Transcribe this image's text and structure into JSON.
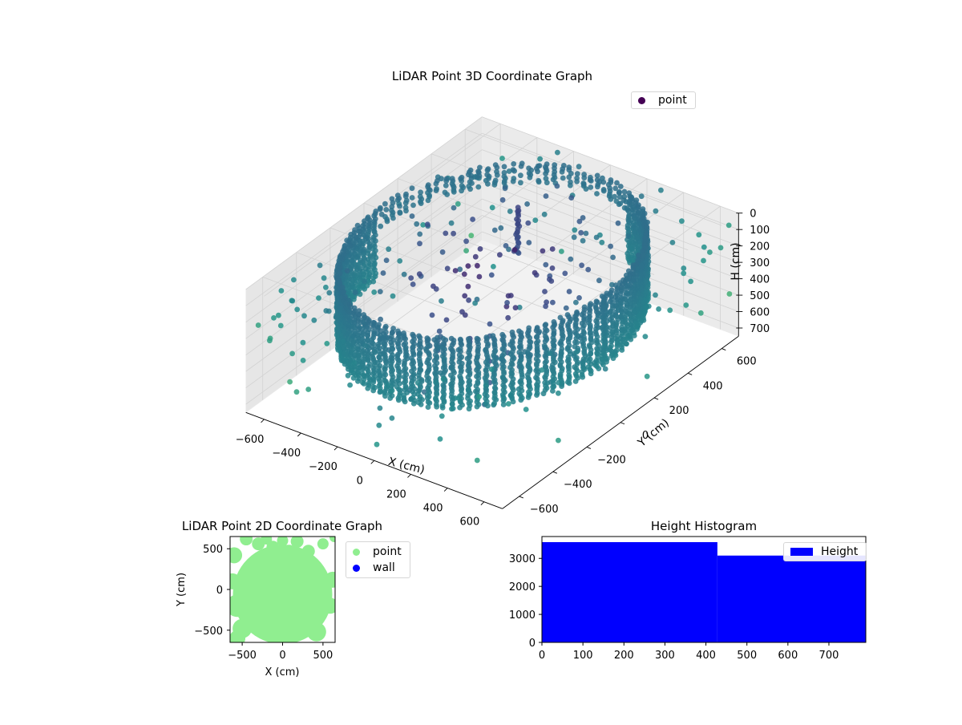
{
  "chart_data": [
    {
      "type": "scatter",
      "subtype": "3d",
      "title": "LiDAR Point 3D Coordinate Graph",
      "xlabel": "X (cm)",
      "ylabel": "Y (cm)",
      "zlabel": "H (cm)",
      "xlim": [
        -700,
        700
      ],
      "ylim": [
        -700,
        700
      ],
      "zlim": [
        0,
        750
      ],
      "z_axis_inverted": true,
      "x_ticks": [
        "−600",
        "−400",
        "−200",
        "0",
        "200",
        "400",
        "600"
      ],
      "y_ticks": [
        "−600",
        "−400",
        "−200",
        "0",
        "200",
        "400",
        "600"
      ],
      "z_ticks": [
        "0",
        "100",
        "200",
        "300",
        "400",
        "500",
        "600",
        "700"
      ],
      "legend": {
        "position": "top-right",
        "entries": [
          "point"
        ]
      },
      "colormap": "viridis (by height)",
      "series": [
        {
          "name": "point",
          "color": "#440154",
          "description_values": {
            "wall_ring_radius_cm": 620,
            "wall_height_range_cm": [
              0,
              420
            ],
            "scattered_point_range_cm": [
              -700,
              700
            ]
          }
        }
      ]
    },
    {
      "type": "scatter",
      "title": "LiDAR Point 2D Coordinate Graph",
      "xlabel": "X (cm)",
      "ylabel": "Y (cm)",
      "xlim": [
        -650,
        650
      ],
      "ylim": [
        -650,
        650
      ],
      "x_ticks": [
        "−500",
        "0",
        "500"
      ],
      "y_ticks": [
        "−500",
        "0",
        "500"
      ],
      "legend": {
        "position": "outside-right",
        "entries": [
          "point",
          "wall"
        ]
      },
      "series": [
        {
          "name": "point",
          "color": "#90ee90"
        },
        {
          "name": "wall",
          "color": "#0000ff"
        }
      ]
    },
    {
      "type": "bar",
      "subtype": "histogram",
      "title": "Height Histogram",
      "xlim": [
        0,
        790
      ],
      "ylim": [
        0,
        3780
      ],
      "x_ticks": [
        "0",
        "100",
        "200",
        "300",
        "400",
        "500",
        "600",
        "700"
      ],
      "y_ticks": [
        "0",
        "1000",
        "2000",
        "3000"
      ],
      "legend": {
        "position": "top-right",
        "entries": [
          "Height"
        ]
      },
      "bins": [
        {
          "x0": 0,
          "x1": 428,
          "count": 3580
        },
        {
          "x0": 428,
          "x1": 790,
          "count": 3100
        }
      ],
      "series": [
        {
          "name": "Height",
          "color": "#0000ff"
        }
      ]
    }
  ]
}
